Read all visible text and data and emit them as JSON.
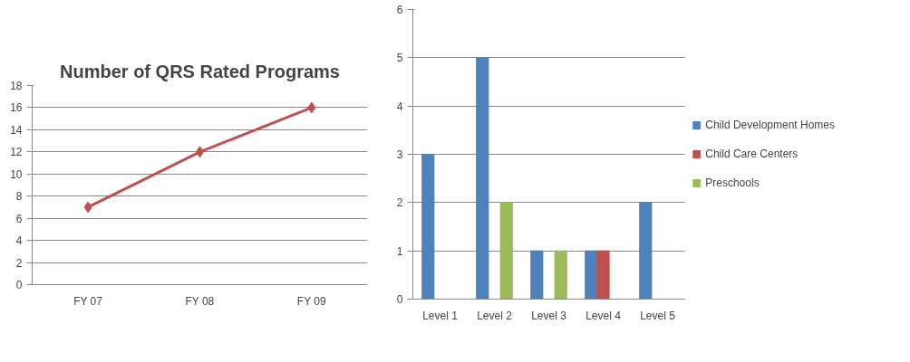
{
  "chart_data": [
    {
      "type": "line",
      "title": "Number of QRS Rated Programs",
      "categories": [
        "FY 07",
        "FY 08",
        "FY 09"
      ],
      "series": [
        {
          "color": "#c0504d",
          "values": [
            7,
            12,
            16
          ]
        }
      ],
      "ylim": [
        0,
        18
      ],
      "yticks": [
        0,
        2,
        4,
        6,
        8,
        10,
        12,
        14,
        16,
        18
      ],
      "grid": "y",
      "marker": "diamond"
    },
    {
      "type": "bar",
      "categories": [
        "Level 1",
        "Level 2",
        "Level 3",
        "Level 4",
        "Level 5"
      ],
      "series": [
        {
          "name": "Child Development Homes",
          "color": "#4f81bd",
          "values": [
            3,
            5,
            1,
            1,
            2
          ]
        },
        {
          "name": "Child Care Centers",
          "color": "#c0504d",
          "values": [
            0,
            0,
            0,
            1,
            0
          ]
        },
        {
          "name": "Preschools",
          "color": "#9bbb59",
          "values": [
            0,
            2,
            1,
            0,
            0
          ]
        }
      ],
      "ylim": [
        0,
        6
      ],
      "yticks": [
        0,
        1,
        2,
        3,
        4,
        5,
        6
      ],
      "grid": "y",
      "legend": "right"
    }
  ]
}
